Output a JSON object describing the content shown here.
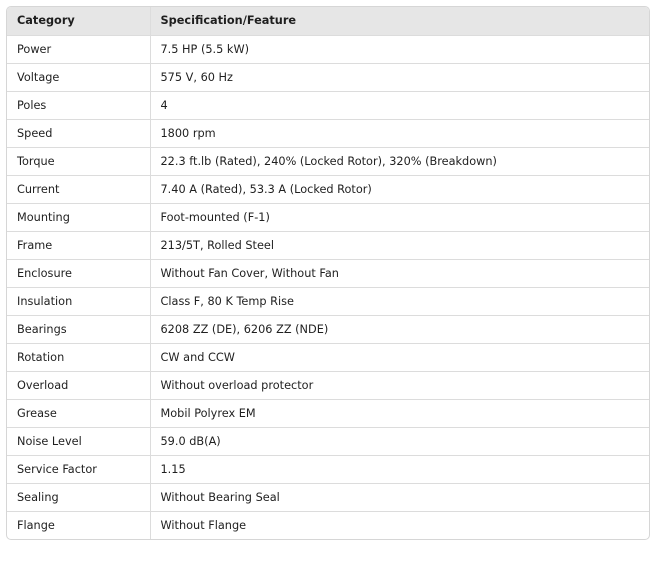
{
  "table": {
    "headers": [
      "Category",
      "Specification/Feature"
    ],
    "rows": [
      [
        "Power",
        "7.5 HP (5.5 kW)"
      ],
      [
        "Voltage",
        "575 V, 60 Hz"
      ],
      [
        "Poles",
        "4"
      ],
      [
        "Speed",
        "1800 rpm"
      ],
      [
        "Torque",
        "22.3 ft.lb (Rated), 240% (Locked Rotor), 320% (Breakdown)"
      ],
      [
        "Current",
        "7.40 A (Rated), 53.3 A (Locked Rotor)"
      ],
      [
        "Mounting",
        "Foot-mounted (F-1)"
      ],
      [
        "Frame",
        "213/5T, Rolled Steel"
      ],
      [
        "Enclosure",
        "Without Fan Cover, Without Fan"
      ],
      [
        "Insulation",
        "Class F, 80 K Temp Rise"
      ],
      [
        "Bearings",
        "6208 ZZ (DE), 6206 ZZ (NDE)"
      ],
      [
        "Rotation",
        "CW and CCW"
      ],
      [
        "Overload",
        "Without overload protector"
      ],
      [
        "Grease",
        "Mobil Polyrex EM"
      ],
      [
        "Noise Level",
        "59.0 dB(A)"
      ],
      [
        "Service Factor",
        "1.15"
      ],
      [
        "Sealing",
        "Without Bearing Seal"
      ],
      [
        "Flange",
        "Without Flange"
      ]
    ]
  }
}
